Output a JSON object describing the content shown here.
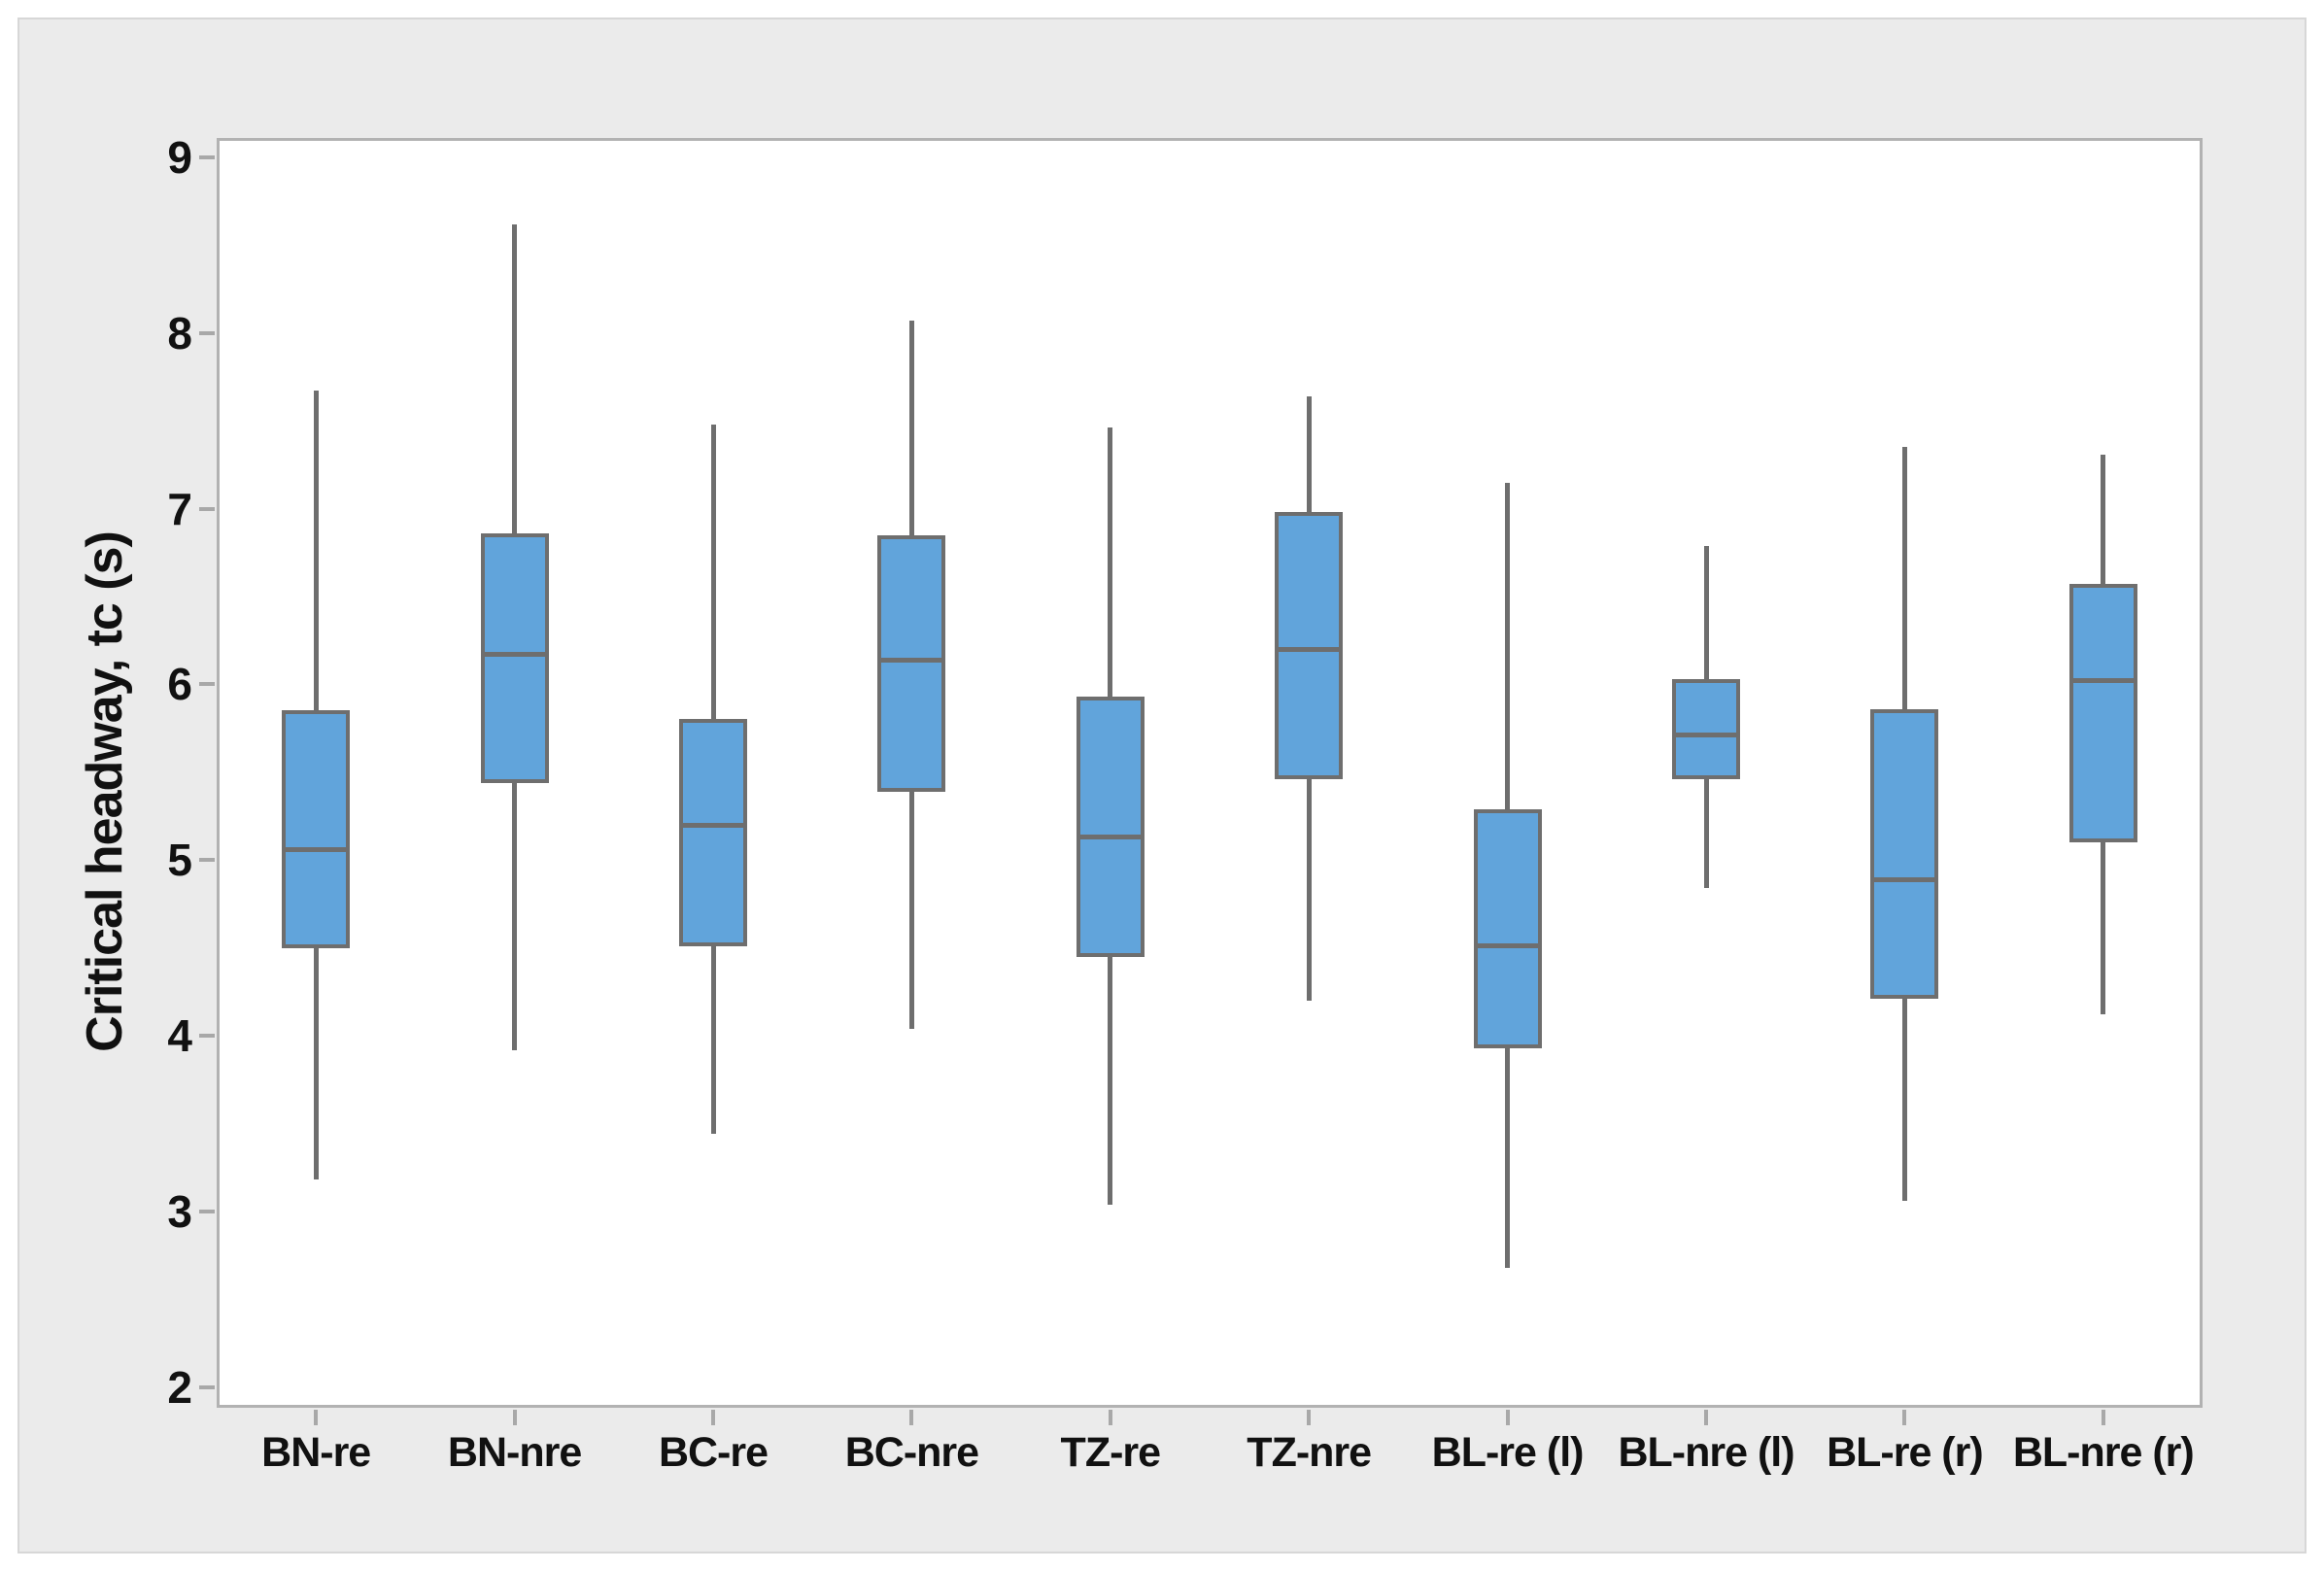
{
  "panel": {
    "background": "#ebebeb",
    "border_color": "#d7d7d7"
  },
  "axes": {
    "frame_color": "#b2b2b2",
    "tick_color": "#a8a8a8",
    "text_color": "#111111"
  },
  "chart_data": {
    "type": "boxplot",
    "title": "",
    "xlabel": "",
    "ylabel": "Critical headway, tc (s)",
    "ylim": [
      2,
      9
    ],
    "y_ticks": [
      9,
      8,
      7,
      6,
      5,
      4,
      3,
      2
    ],
    "grid": false,
    "legend": "none",
    "box_fill": "#61a4db",
    "box_stroke": "#6e6e6e",
    "categories": [
      "BN-re",
      "BN-nre",
      "BC-re",
      "BC-nre",
      "TZ-re",
      "TZ-nre",
      "BL-re (l)",
      "BL-nre (l)",
      "BL-re (r)",
      "BL-nre (r)"
    ],
    "series": [
      {
        "category": "BN-re",
        "whisker_low": 3.18,
        "q1": 4.51,
        "median": 5.06,
        "q3": 5.84,
        "whisker_high": 7.67
      },
      {
        "category": "BN-nre",
        "whisker_low": 3.92,
        "q1": 5.45,
        "median": 6.17,
        "q3": 6.85,
        "whisker_high": 8.62
      },
      {
        "category": "BC-re",
        "whisker_low": 3.44,
        "q1": 4.52,
        "median": 5.2,
        "q3": 5.79,
        "whisker_high": 7.48
      },
      {
        "category": "BC-nre",
        "whisker_low": 4.04,
        "q1": 5.4,
        "median": 6.14,
        "q3": 6.84,
        "whisker_high": 8.07
      },
      {
        "category": "TZ-re",
        "whisker_low": 3.04,
        "q1": 4.46,
        "median": 5.13,
        "q3": 5.92,
        "whisker_high": 7.46
      },
      {
        "category": "TZ-nre",
        "whisker_low": 4.2,
        "q1": 5.47,
        "median": 6.2,
        "q3": 6.97,
        "whisker_high": 7.64
      },
      {
        "category": "BL-re (l)",
        "whisker_low": 2.68,
        "q1": 3.94,
        "median": 4.51,
        "q3": 5.28,
        "whisker_high": 7.15
      },
      {
        "category": "BL-nre (l)",
        "whisker_low": 4.84,
        "q1": 5.47,
        "median": 5.71,
        "q3": 6.02,
        "whisker_high": 6.79
      },
      {
        "category": "BL-re (r)",
        "whisker_low": 3.06,
        "q1": 4.22,
        "median": 4.89,
        "q3": 5.85,
        "whisker_high": 7.35
      },
      {
        "category": "BL-nre (r)",
        "whisker_low": 4.12,
        "q1": 5.11,
        "median": 6.02,
        "q3": 6.56,
        "whisker_high": 7.31
      }
    ]
  }
}
